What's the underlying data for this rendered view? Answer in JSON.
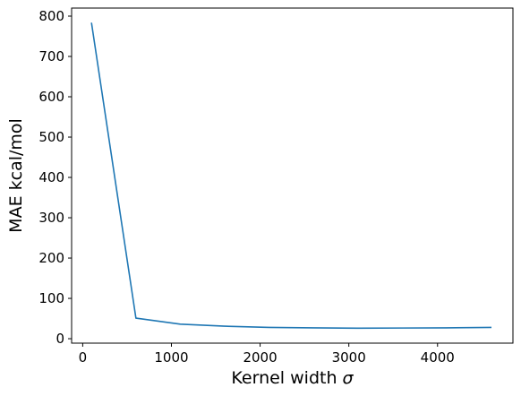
{
  "chart_data": {
    "type": "line",
    "xlabel": "Kernel width",
    "xlabel_symbol": "σ",
    "ylabel": "MAE kcal/mol",
    "xlim": [
      -125,
      4850
    ],
    "ylim": [
      -11,
      820
    ],
    "x_ticks": [
      0,
      1000,
      2000,
      3000,
      4000
    ],
    "x_tick_labels": [
      "0",
      "1000",
      "2000",
      "3000",
      "4000"
    ],
    "y_ticks": [
      0,
      100,
      200,
      300,
      400,
      500,
      600,
      700,
      800
    ],
    "y_tick_labels": [
      "0",
      "100",
      "200",
      "300",
      "400",
      "500",
      "600",
      "700",
      "800"
    ],
    "grid": false,
    "series": [
      {
        "color": "#1f77b4",
        "x": [
          100,
          600,
          1100,
          1600,
          2100,
          2600,
          3100,
          3600,
          4100,
          4600
        ],
        "y": [
          782,
          51,
          36,
          31,
          28,
          27,
          26,
          26.5,
          27,
          28
        ]
      }
    ]
  }
}
